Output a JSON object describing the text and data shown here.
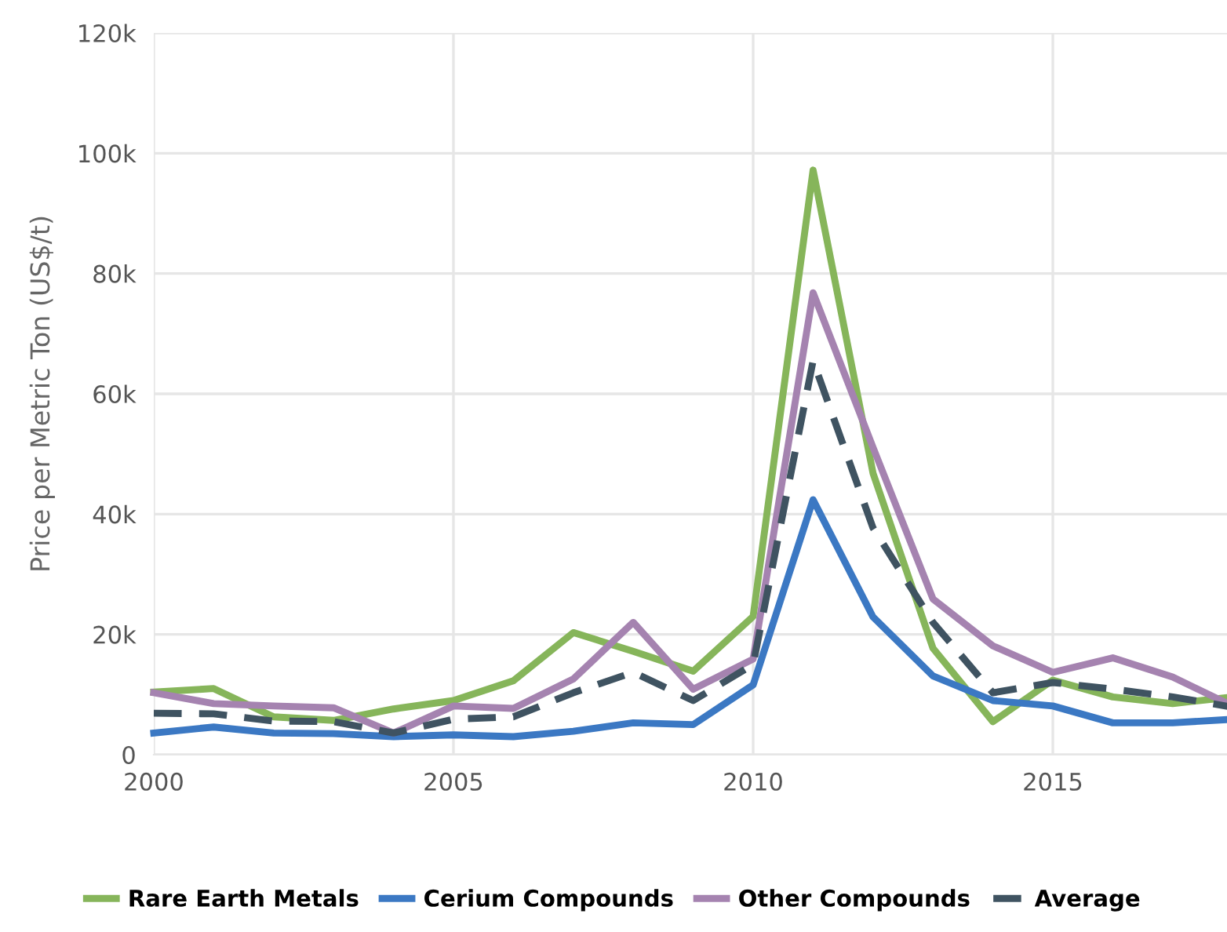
{
  "chart_data": {
    "type": "line",
    "ylabel": "Price per Metric Ton (US$/t)",
    "x": [
      2000,
      2001,
      2002,
      2003,
      2004,
      2005,
      2006,
      2007,
      2008,
      2009,
      2010,
      2011,
      2012,
      2013,
      2014,
      2015,
      2016,
      2017,
      2018
    ],
    "series": [
      {
        "name": "Rare Earth Metals",
        "color": "#86b55a",
        "values": [
          10400,
          11000,
          6300,
          5700,
          7600,
          9000,
          12300,
          20300,
          17200,
          13900,
          23000,
          97200,
          46800,
          17700,
          5500,
          12400,
          9600,
          8500,
          9600
        ]
      },
      {
        "name": "Cerium Compounds",
        "color": "#3b78c3",
        "values": [
          3600,
          4600,
          3600,
          3500,
          3000,
          3300,
          3000,
          3900,
          5300,
          5000,
          11600,
          42400,
          22900,
          13100,
          9000,
          8100,
          5300,
          5300,
          5900
        ]
      },
      {
        "name": "Other Compounds",
        "color": "#a583b0",
        "values": [
          10300,
          8500,
          8100,
          7800,
          3600,
          8100,
          7700,
          12600,
          22000,
          10900,
          15900,
          76800,
          51100,
          25900,
          18100,
          13700,
          16100,
          12900,
          8100
        ]
      },
      {
        "name": "Average",
        "color": "#3f5361",
        "line_style": "dashed",
        "values": [
          6900,
          6800,
          5600,
          5500,
          3600,
          5900,
          6300,
          10300,
          13700,
          9000,
          15000,
          65500,
          37700,
          22000,
          10300,
          12000,
          10900,
          9600,
          7900
        ]
      }
    ],
    "xlim": [
      2000,
      2018
    ],
    "xticks": [
      2000,
      2005,
      2010,
      2015
    ],
    "ylim": [
      0,
      120000
    ],
    "yticks": [
      {
        "value": 0,
        "label": "0"
      },
      {
        "value": 20000,
        "label": "20k"
      },
      {
        "value": 40000,
        "label": "40k"
      },
      {
        "value": 60000,
        "label": "60k"
      },
      {
        "value": 80000,
        "label": "80k"
      },
      {
        "value": 100000,
        "label": "100k"
      },
      {
        "value": 120000,
        "label": "120k"
      }
    ],
    "grid": true,
    "legend": "bottom",
    "line_style": "solid",
    "marker": "none"
  }
}
